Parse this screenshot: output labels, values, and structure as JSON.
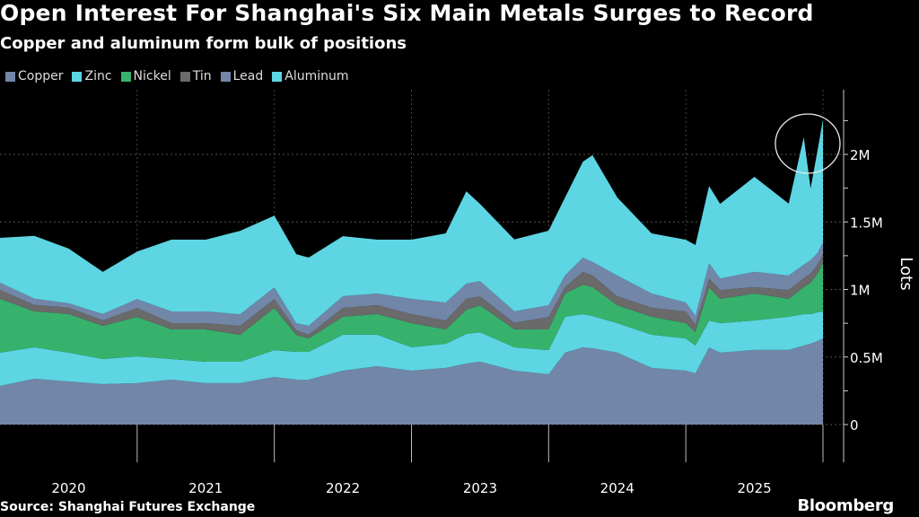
{
  "header": {
    "title": "Open Interest For Shanghai's Six Main Metals Surges to Record",
    "subtitle": "Copper and aluminum form bulk of positions"
  },
  "footer": {
    "source": "Source: Shanghai Futures Exchange",
    "logo": "Bloomberg"
  },
  "chart_data": {
    "type": "area",
    "stacked": true,
    "title": "Open Interest For Shanghai's Six Main Metals Surges to Record",
    "subtitle": "Copper and aluminum form bulk of positions",
    "xlabel": "",
    "ylabel": "Lots",
    "ylim": [
      0,
      2400000
    ],
    "yticks": [
      0,
      500000,
      1000000,
      1500000,
      2000000
    ],
    "ytick_labels": [
      "0",
      "0.5M",
      "1M",
      "1.5M",
      "2M"
    ],
    "xlim": [
      2020.0,
      2026.0
    ],
    "xtick_labels": [
      "2020",
      "2021",
      "2022",
      "2023",
      "2024",
      "2025"
    ],
    "grid": true,
    "legend_placement": "top-left",
    "annotation": "circle around record peak",
    "x": [
      2020.0,
      2020.25,
      2020.5,
      2020.75,
      2021.0,
      2021.25,
      2021.5,
      2021.75,
      2022.0,
      2022.16,
      2022.25,
      2022.5,
      2022.75,
      2023.0,
      2023.25,
      2023.4,
      2023.5,
      2023.75,
      2024.0,
      2024.12,
      2024.25,
      2024.32,
      2024.5,
      2024.75,
      2025.0,
      2025.07,
      2025.17,
      2025.25,
      2025.5,
      2025.75,
      2025.86,
      2025.91,
      2025.96,
      2026.0
    ],
    "series": [
      {
        "name": "Copper",
        "color": "#7286a8",
        "values": [
          286000,
          339000,
          319000,
          299000,
          306000,
          332000,
          306000,
          306000,
          352000,
          332000,
          332000,
          399000,
          432000,
          399000,
          419000,
          452000,
          465000,
          399000,
          372000,
          532000,
          571000,
          565000,
          532000,
          419000,
          399000,
          379000,
          571000,
          532000,
          552000,
          552000,
          585000,
          598000,
          618000,
          638000
        ]
      },
      {
        "name": "Zinc",
        "color": "#5dd5e3",
        "values": [
          246000,
          233000,
          213000,
          186000,
          199000,
          153000,
          159000,
          159000,
          199000,
          206000,
          206000,
          266000,
          233000,
          173000,
          179000,
          219000,
          219000,
          173000,
          179000,
          266000,
          246000,
          239000,
          219000,
          246000,
          239000,
          206000,
          199000,
          219000,
          219000,
          246000,
          233000,
          219000,
          213000,
          199000
        ]
      },
      {
        "name": "Nickel",
        "color": "#37b26c",
        "values": [
          399000,
          266000,
          286000,
          246000,
          292000,
          219000,
          239000,
          199000,
          312000,
          126000,
          100000,
          133000,
          153000,
          179000,
          106000,
          179000,
          199000,
          133000,
          153000,
          173000,
          219000,
          213000,
          133000,
          133000,
          113000,
          100000,
          246000,
          179000,
          199000,
          133000,
          199000,
          233000,
          286000,
          359000
        ]
      },
      {
        "name": "Tin",
        "color": "#6a6a6a",
        "values": [
          66000,
          47000,
          47000,
          40000,
          66000,
          47000,
          47000,
          66000,
          66000,
          33000,
          27000,
          66000,
          66000,
          66000,
          66000,
          80000,
          66000,
          47000,
          93000,
          47000,
          93000,
          86000,
          66000,
          66000,
          86000,
          53000,
          66000,
          66000,
          47000,
          66000,
          66000,
          66000,
          66000,
          66000
        ]
      },
      {
        "name": "Lead",
        "color": "#7286a8",
        "values": [
          53000,
          47000,
          33000,
          47000,
          66000,
          86000,
          86000,
          86000,
          86000,
          53000,
          66000,
          86000,
          86000,
          113000,
          133000,
          113000,
          113000,
          86000,
          86000,
          86000,
          106000,
          100000,
          153000,
          106000,
          66000,
          66000,
          113000,
          86000,
          113000,
          106000,
          100000,
          100000,
          86000,
          86000
        ]
      },
      {
        "name": "Aluminum",
        "color": "#5dd5e3",
        "values": [
          332000,
          465000,
          405000,
          312000,
          352000,
          532000,
          532000,
          618000,
          532000,
          512000,
          505000,
          445000,
          399000,
          439000,
          512000,
          684000,
          571000,
          532000,
          552000,
          578000,
          711000,
          791000,
          578000,
          445000,
          465000,
          525000,
          571000,
          552000,
          704000,
          532000,
          944000,
          532000,
          758000,
          910000
        ]
      }
    ]
  }
}
